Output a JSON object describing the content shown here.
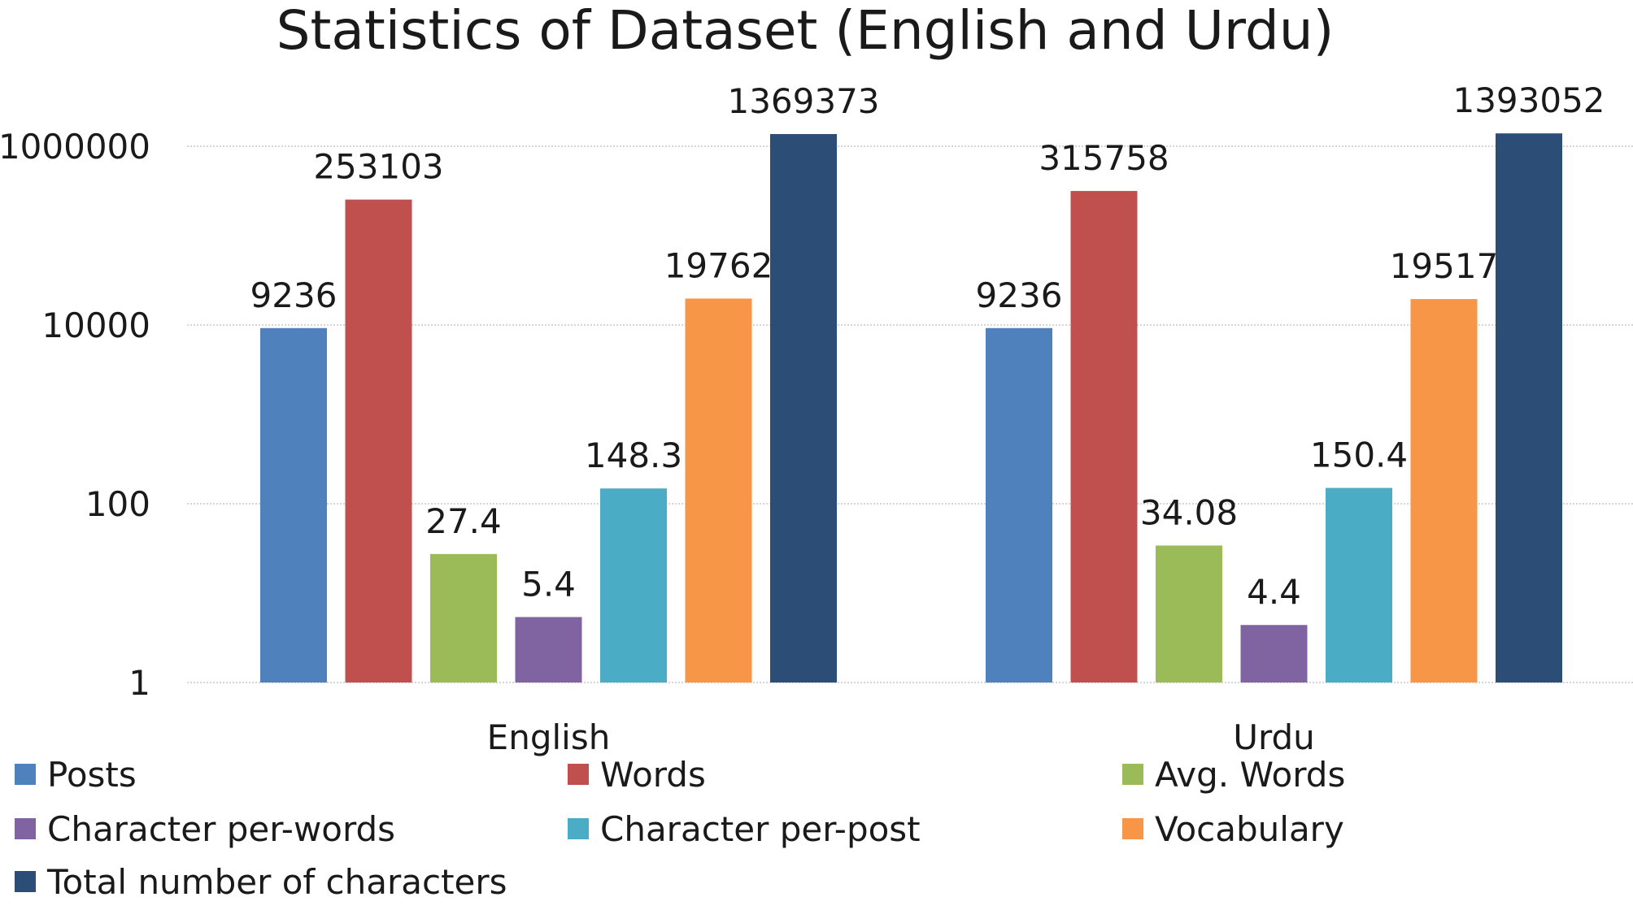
{
  "chart_data": {
    "type": "bar",
    "title": "Statistics of Dataset (English and Urdu)",
    "xlabel": "",
    "ylabel": "",
    "yscale": "log",
    "ylim": [
      1,
      1369373
    ],
    "yticks": [
      1,
      100,
      10000,
      1000000
    ],
    "ytick_labels": [
      "1",
      "100",
      "10000",
      "1000000"
    ],
    "grid": true,
    "legend_position": "bottom",
    "categories": [
      "English",
      "Urdu"
    ],
    "series": [
      {
        "name": "Posts",
        "color": "#4F81BD",
        "values": [
          9236,
          9236
        ],
        "labels": [
          "9236",
          "9236"
        ]
      },
      {
        "name": "Words",
        "color": "#C0504D",
        "values": [
          253103,
          315758
        ],
        "labels": [
          "253103",
          "315758"
        ]
      },
      {
        "name": "Avg. Words",
        "color": "#9BBB59",
        "values": [
          27.4,
          34.08
        ],
        "labels": [
          "27.4",
          "34.08"
        ]
      },
      {
        "name": "Character per-words",
        "color": "#8064A2",
        "values": [
          5.4,
          4.4
        ],
        "labels": [
          "5.4",
          "4.4"
        ]
      },
      {
        "name": "Character per-post",
        "color": "#4BACC6",
        "values": [
          148.3,
          150.4
        ],
        "labels": [
          "148.3",
          "150.4"
        ]
      },
      {
        "name": "Vocabulary",
        "color": "#F79646",
        "values": [
          19762,
          19517
        ],
        "labels": [
          "19762",
          "19517"
        ]
      },
      {
        "name": "Total number of characters",
        "color": "#2C4D75",
        "values": [
          1369373,
          1393052
        ],
        "labels": [
          "1369373",
          "1393052"
        ]
      }
    ]
  }
}
